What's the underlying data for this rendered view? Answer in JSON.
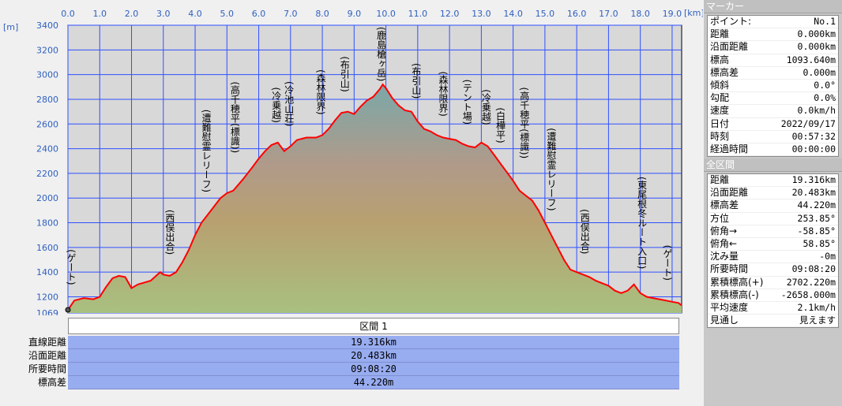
{
  "chart_data": {
    "type": "area",
    "x_unit": "[km]",
    "y_unit": "[m]",
    "xlim": [
      0,
      19.3
    ],
    "ylim": [
      1069,
      3400
    ],
    "x_ticks": [
      "0.0",
      "1.0",
      "2.0",
      "3.0",
      "4.0",
      "5.0",
      "6.0",
      "7.0",
      "8.0",
      "9.0",
      "10.0",
      "11.0",
      "12.0",
      "13.0",
      "14.0",
      "15.0",
      "16.0",
      "17.0",
      "18.0",
      "19.0"
    ],
    "y_ticks": [
      "3400",
      "3200",
      "3000",
      "2800",
      "2600",
      "2400",
      "2200",
      "2000",
      "1800",
      "1600",
      "1400",
      "1200",
      "1069"
    ],
    "series": [
      {
        "x": [
          0.0,
          0.2,
          0.5,
          0.8,
          1.0,
          1.2,
          1.4,
          1.6,
          1.8,
          2.0,
          2.2,
          2.6,
          2.9,
          3.0,
          3.2,
          3.4,
          3.6,
          3.8,
          4.0,
          4.2,
          4.5,
          4.8,
          5.0,
          5.2,
          5.5,
          5.8,
          6.0,
          6.2,
          6.4,
          6.6,
          6.8,
          7.0,
          7.2,
          7.5,
          7.8,
          8.0,
          8.2,
          8.4,
          8.6,
          8.8,
          9.0,
          9.2,
          9.4,
          9.6,
          9.8,
          9.9,
          10.0,
          10.2,
          10.4,
          10.6,
          10.8,
          11.0,
          11.2,
          11.4,
          11.6,
          11.8,
          12.0,
          12.2,
          12.4,
          12.6,
          12.8,
          13.0,
          13.2,
          13.4,
          13.6,
          13.8,
          14.0,
          14.2,
          14.4,
          14.6,
          14.8,
          15.0,
          15.2,
          15.4,
          15.6,
          15.8,
          16.0,
          16.2,
          16.4,
          16.6,
          16.8,
          17.0,
          17.2,
          17.4,
          17.6,
          17.8,
          18.0,
          18.2,
          18.4,
          18.6,
          18.8,
          19.0,
          19.2,
          19.3
        ],
        "y": [
          1093,
          1170,
          1190,
          1180,
          1200,
          1280,
          1350,
          1370,
          1360,
          1270,
          1300,
          1330,
          1400,
          1380,
          1370,
          1400,
          1480,
          1580,
          1700,
          1800,
          1900,
          2000,
          2040,
          2060,
          2150,
          2250,
          2320,
          2380,
          2430,
          2450,
          2380,
          2420,
          2470,
          2490,
          2490,
          2510,
          2560,
          2630,
          2690,
          2700,
          2680,
          2740,
          2790,
          2820,
          2880,
          2920,
          2890,
          2810,
          2750,
          2710,
          2700,
          2620,
          2560,
          2540,
          2510,
          2490,
          2480,
          2470,
          2440,
          2420,
          2410,
          2450,
          2420,
          2350,
          2280,
          2210,
          2140,
          2060,
          2020,
          1980,
          1900,
          1800,
          1700,
          1600,
          1500,
          1420,
          1400,
          1380,
          1360,
          1330,
          1310,
          1290,
          1250,
          1230,
          1250,
          1300,
          1230,
          1200,
          1190,
          1180,
          1170,
          1160,
          1150,
          1130
        ]
      }
    ],
    "annotations": [
      {
        "x": 0.1,
        "text": "(ゲート)"
      },
      {
        "x": 3.2,
        "text": "(西俣出合)"
      },
      {
        "x": 4.35,
        "text": "(遭難慰霊レリーフ)"
      },
      {
        "x": 5.25,
        "text": "(高千穂平(標識))"
      },
      {
        "x": 6.55,
        "text": "(冷乗越)"
      },
      {
        "x": 6.95,
        "text": "(冷池山荘)"
      },
      {
        "x": 7.95,
        "text": "(森林限界)"
      },
      {
        "x": 8.7,
        "text": "(布引山)"
      },
      {
        "x": 9.85,
        "text": "(鹿島槍ヶ岳)"
      },
      {
        "x": 10.95,
        "text": "(布引山)"
      },
      {
        "x": 11.8,
        "text": "(森林限界)"
      },
      {
        "x": 12.55,
        "text": "(テント場)"
      },
      {
        "x": 13.15,
        "text": "(冷乗越)"
      },
      {
        "x": 13.6,
        "text": "(白樺平)"
      },
      {
        "x": 14.35,
        "text": "(高千穂平(標識))"
      },
      {
        "x": 15.2,
        "text": "(遭難慰霊レリーフ)"
      },
      {
        "x": 16.25,
        "text": "(西俣出合)"
      },
      {
        "x": 18.05,
        "text": "(東尾根冬ルート入口)"
      },
      {
        "x": 18.85,
        "text": "(ゲート)"
      }
    ]
  },
  "section": {
    "header": "区間 1",
    "rows": [
      {
        "label": "直線距離",
        "value": "19.316km"
      },
      {
        "label": "沿面距離",
        "value": "20.483km"
      },
      {
        "label": "所要時間",
        "value": "09:08:20"
      },
      {
        "label": "標高差",
        "value": "44.220m"
      }
    ]
  },
  "panel": {
    "marker_title": "マーカー",
    "marker_rows": [
      {
        "label": "ポイント:",
        "value": "No.1"
      },
      {
        "label": "距離",
        "value": "0.000km"
      },
      {
        "label": "沿面距離",
        "value": "0.000km"
      },
      {
        "label": "標高",
        "value": "1093.640m"
      },
      {
        "label": "標高差",
        "value": "0.000m"
      },
      {
        "label": "傾斜",
        "value": "0.0°"
      },
      {
        "label": "勾配",
        "value": "0.0%"
      },
      {
        "label": "速度",
        "value": "0.0km/h"
      },
      {
        "label": "日付",
        "value": "2022/09/17"
      },
      {
        "label": "時刻",
        "value": "00:57:32"
      },
      {
        "label": "経過時間",
        "value": "00:00:00"
      }
    ],
    "total_title": "全区間",
    "total_rows": [
      {
        "label": "距離",
        "value": "19.316km"
      },
      {
        "label": "沿面距離",
        "value": "20.483km"
      },
      {
        "label": "標高差",
        "value": "44.220m"
      },
      {
        "label": "方位",
        "value": "253.85°"
      },
      {
        "label": "俯角→",
        "value": "-58.85°"
      },
      {
        "label": "俯角←",
        "value": "58.85°"
      },
      {
        "label": "沈み量",
        "value": "-0m"
      },
      {
        "label": "所要時間",
        "value": "09:08:20"
      },
      {
        "label": "累積標高(+)",
        "value": "2702.220m"
      },
      {
        "label": "累積標高(-)",
        "value": "-2658.000m"
      },
      {
        "label": "平均速度",
        "value": "2.1km/h"
      },
      {
        "label": "見通し",
        "value": "見えます"
      }
    ]
  }
}
